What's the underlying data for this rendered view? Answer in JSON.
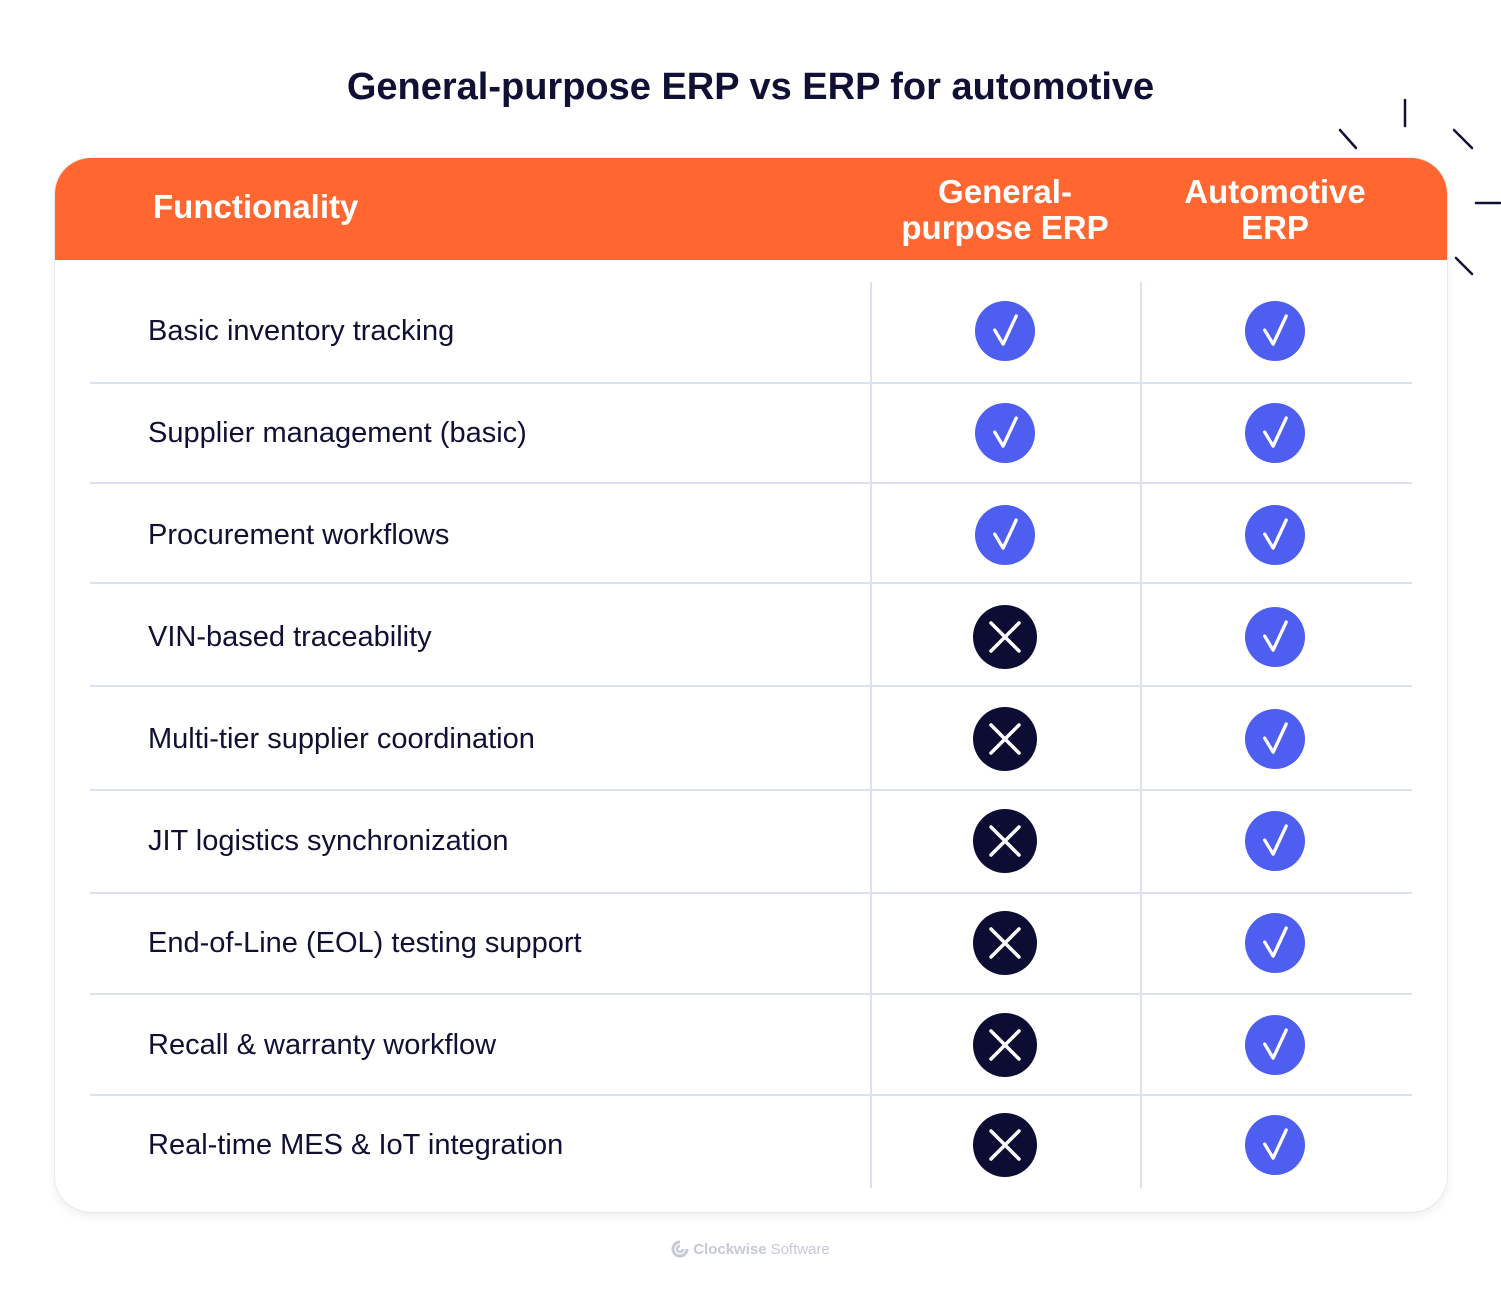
{
  "title": "General-purpose ERP vs ERP for automotive",
  "header": {
    "functionality": "Functionality",
    "general_line1": "General-",
    "general_line2": "purpose ERP",
    "automotive_line1": "Automotive",
    "automotive_line2": "ERP"
  },
  "rows": [
    {
      "label": "Basic inventory tracking",
      "general": "check",
      "automotive": "check"
    },
    {
      "label": "Supplier management (basic)",
      "general": "check",
      "automotive": "check"
    },
    {
      "label": "Procurement workflows",
      "general": "check",
      "automotive": "check"
    },
    {
      "label": "VIN-based traceability",
      "general": "cross",
      "automotive": "check"
    },
    {
      "label": "Multi-tier supplier coordination",
      "general": "cross",
      "automotive": "check"
    },
    {
      "label": "JIT logistics synchronization",
      "general": "cross",
      "automotive": "check"
    },
    {
      "label": "End-of-Line (EOL) testing support",
      "general": "cross",
      "automotive": "check"
    },
    {
      "label": "Recall & warranty workflow",
      "general": "cross",
      "automotive": "check"
    },
    {
      "label": "Real-time MES & IoT integration",
      "general": "cross",
      "automotive": "check"
    }
  ],
  "footer": {
    "brand_bold": "Clockwise",
    "brand_light": "Software"
  },
  "colors": {
    "header_bg": "#ff6630",
    "check_bg": "#4e5ef0",
    "cross_bg": "#0d0d33",
    "title": "#101034",
    "divider": "#dde0f1"
  },
  "icons": {
    "check": "check-circle-icon",
    "cross": "cross-circle-icon",
    "logo": "clockwise-logo-icon"
  }
}
